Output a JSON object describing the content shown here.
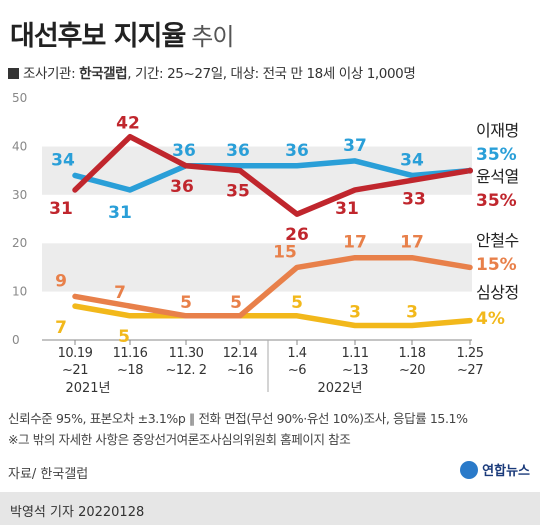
{
  "header": {
    "title": "대선후보 지지율",
    "subtitle": "추이",
    "meta_prefix": "조사기관: ",
    "meta_org": "한국갤럽",
    "meta_rest": ", 기간: 25~27일, 대상: 전국 만 18세 이상 1,000명"
  },
  "chart_data": {
    "type": "line",
    "ylim": [
      0,
      50
    ],
    "yticks": [
      "0",
      "10",
      "20",
      "30",
      "40",
      "50"
    ],
    "categories": [
      "10.19 ~21",
      "11.16 ~18",
      "11.30 ~12. 2",
      "12.14 ~16",
      "1.4 ~6",
      "1.11 ~13",
      "1.18 ~20",
      "1.25 ~27"
    ],
    "category_lines": [
      [
        "10.19",
        "~21"
      ],
      [
        "11.16",
        "~18"
      ],
      [
        "11.30",
        "~12. 2"
      ],
      [
        "12.14",
        "~16"
      ],
      [
        "1.4",
        "~6"
      ],
      [
        "1.11",
        "~13"
      ],
      [
        "1.18",
        "~20"
      ],
      [
        "1.25",
        "~27"
      ]
    ],
    "year_labels": [
      "2021년",
      "2022년"
    ],
    "series": [
      {
        "name": "이재명",
        "color": "#2a9fd8",
        "values": [
          34,
          31,
          36,
          36,
          36,
          37,
          34,
          35
        ],
        "final_label": "35%"
      },
      {
        "name": "윤석열",
        "color": "#c0262d",
        "values": [
          31,
          42,
          36,
          35,
          26,
          31,
          33,
          35
        ],
        "final_label": "35%"
      },
      {
        "name": "안철수",
        "color": "#e8804a",
        "values": [
          9,
          7,
          5,
          5,
          15,
          17,
          17,
          15
        ],
        "final_label": "15%"
      },
      {
        "name": "심상정",
        "color": "#f2b81b",
        "values": [
          7,
          5,
          5,
          5,
          5,
          3,
          3,
          4
        ],
        "final_label": "4%"
      }
    ]
  },
  "notes": {
    "line1": "신뢰수준 95%, 표본오차 ±3.1%p ∥ 전화 면접(무선 90%·유선 10%)조사, 응답률 15.1%",
    "line2": "※그 밖의 자세한 사항은 중앙선거여론조사심의위원회 홈페이지 참조"
  },
  "source": "자료/ 한국갤럽",
  "logo": "연합뉴스",
  "footer": "박영석 기자  20220128"
}
